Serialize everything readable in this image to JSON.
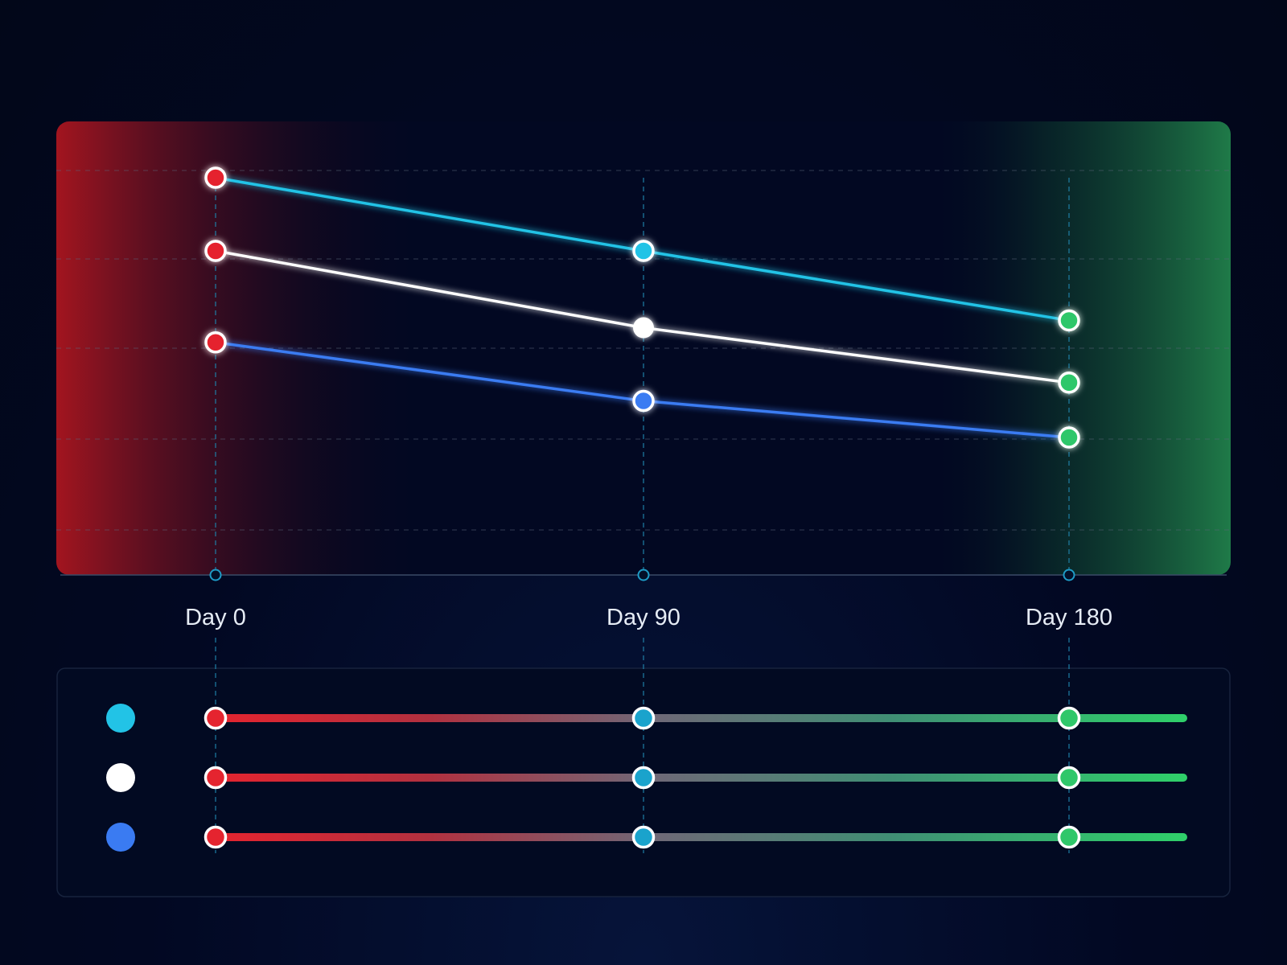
{
  "chart_data": {
    "type": "line",
    "x": [
      0,
      90,
      180
    ],
    "tick_labels": [
      "Day 0",
      "Day 90",
      "Day 180"
    ],
    "title": "",
    "xlabel": "",
    "ylabel": "",
    "grid": true,
    "series": [
      {
        "color": "#22c3e6",
        "values": [
          100,
          80,
          61
        ]
      },
      {
        "color": "#ffffff",
        "values": [
          80,
          59,
          44
        ]
      },
      {
        "color": "#3a7bf2",
        "values": [
          55,
          39,
          29
        ]
      }
    ],
    "start_color": "#e5242f",
    "mid_color": "#1aa3cc",
    "end_color": "#2fc76a"
  },
  "legend": {
    "rows": [
      {
        "color": "#22c3e6"
      },
      {
        "color": "#ffffff"
      },
      {
        "color": "#3a7bf2"
      }
    ]
  }
}
